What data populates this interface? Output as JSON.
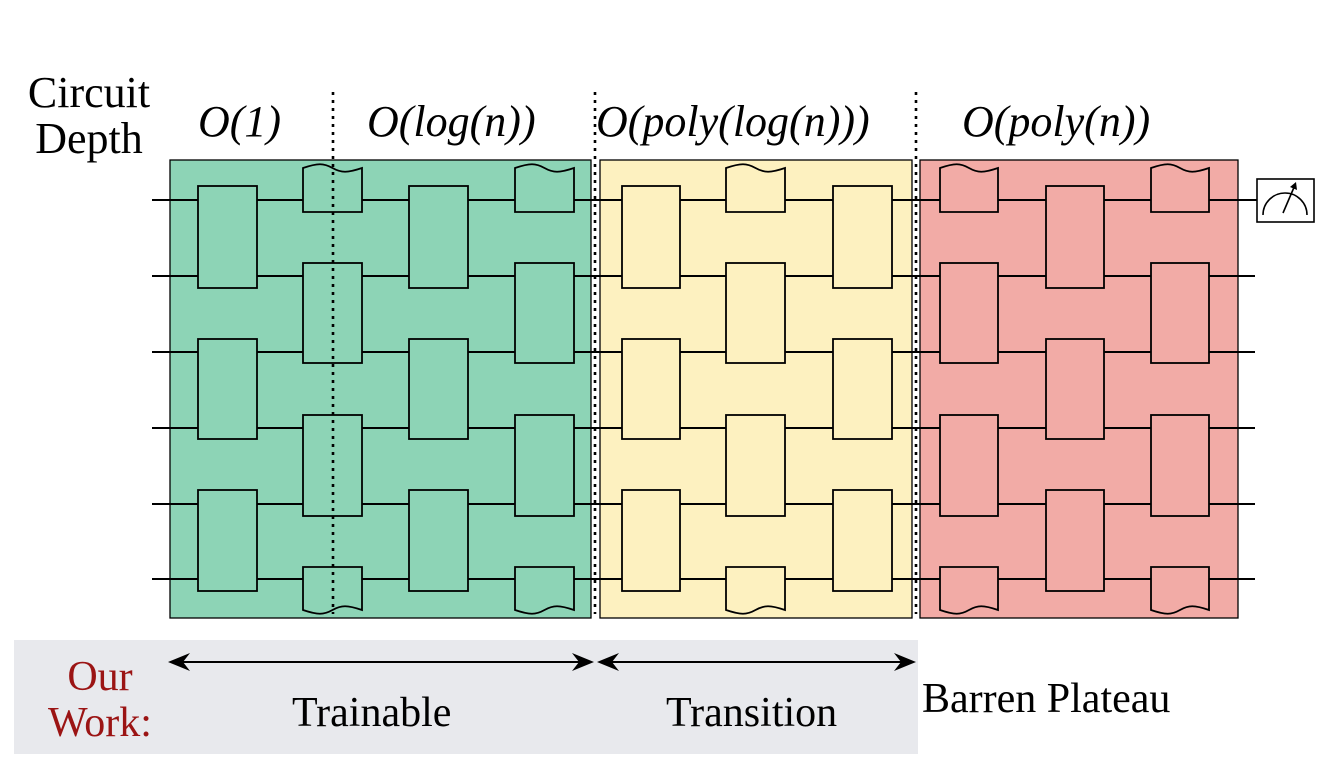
{
  "diagram": {
    "axis_title_line1": "Circuit",
    "axis_title_line2": "Depth",
    "depth_labels": [
      "O(1)",
      "O(log(n))",
      "O(poly(log(n)))",
      "O(poly(n))"
    ],
    "our_work_line1": "Our",
    "our_work_line2": "Work:",
    "regimes": [
      "Trainable",
      "Transition",
      "Barren Plateau"
    ],
    "colors": {
      "trainable": "#8dd4b6",
      "transition": "#fdf1c0",
      "barren": "#f2aba6",
      "our_work_text": "#9b1414",
      "bottom_panel": "#e8e9ed"
    },
    "qubits": 6,
    "measurement_icon": "meter-icon"
  }
}
